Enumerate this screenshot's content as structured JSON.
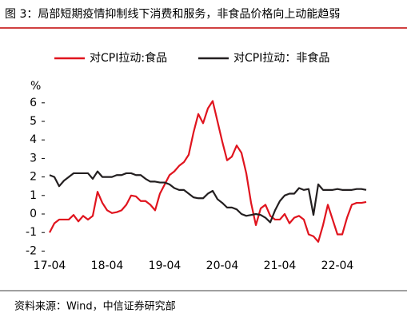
{
  "chart_data": {
    "type": "line",
    "title": "图 3：局部短期疫情抑制线下消费和服务，非食品价格向上动能趋弱",
    "y_unit": "%",
    "source": "资料来源：Wind，中信证券研究部",
    "categories": [
      "17-04",
      null,
      null,
      null,
      null,
      null,
      null,
      null,
      null,
      null,
      null,
      null,
      "18-04",
      null,
      null,
      null,
      null,
      null,
      null,
      null,
      null,
      null,
      null,
      null,
      "19-04",
      null,
      null,
      null,
      null,
      null,
      null,
      null,
      null,
      null,
      null,
      null,
      "20-04",
      null,
      null,
      null,
      null,
      null,
      null,
      null,
      null,
      null,
      null,
      null,
      "21-04",
      null,
      null,
      null,
      null,
      null,
      null,
      null,
      null,
      null,
      null,
      null,
      "22-04",
      null,
      null,
      null,
      null,
      null,
      null
    ],
    "series": [
      {
        "name": "对CPI拉动:食品",
        "color": "#e0141e",
        "values": [
          -1.0,
          -0.5,
          -0.3,
          -0.3,
          -0.3,
          -0.05,
          -0.4,
          -0.1,
          -0.3,
          -0.1,
          1.2,
          0.6,
          0.2,
          0.05,
          0.1,
          0.2,
          0.5,
          1.0,
          0.95,
          0.7,
          0.7,
          0.5,
          0.2,
          1.1,
          1.6,
          2.1,
          2.3,
          2.6,
          2.8,
          3.2,
          4.4,
          5.4,
          4.9,
          5.7,
          6.1,
          5.0,
          3.9,
          2.9,
          3.1,
          3.7,
          3.3,
          2.2,
          0.6,
          -0.6,
          0.3,
          0.5,
          -0.1,
          -0.3,
          -0.3,
          0.0,
          -0.5,
          -0.2,
          -0.1,
          -0.3,
          -1.1,
          -1.2,
          -1.5,
          -0.6,
          0.5,
          -0.3,
          -1.1,
          -1.1,
          -0.2,
          0.5,
          0.6,
          0.6,
          0.65
        ]
      },
      {
        "name": "对CPI拉动：非食品",
        "color": "#231f20",
        "values": [
          2.1,
          2.0,
          1.5,
          1.8,
          2.0,
          2.2,
          2.2,
          2.2,
          2.2,
          1.9,
          2.3,
          2.0,
          2.0,
          2.0,
          2.1,
          2.1,
          2.2,
          2.2,
          2.1,
          2.1,
          1.9,
          1.75,
          1.75,
          1.7,
          1.7,
          1.6,
          1.4,
          1.3,
          1.3,
          1.1,
          0.9,
          0.85,
          0.85,
          1.1,
          1.25,
          0.8,
          0.6,
          0.35,
          0.35,
          0.25,
          0.0,
          -0.1,
          -0.05,
          0.0,
          -0.05,
          -0.2,
          -0.45,
          0.2,
          0.7,
          1.0,
          1.1,
          1.1,
          1.4,
          1.3,
          1.35,
          -0.05,
          1.6,
          1.3,
          1.3,
          1.3,
          1.35,
          1.3,
          1.3,
          1.3,
          1.35,
          1.35,
          1.3
        ]
      }
    ],
    "ylim": [
      -2,
      7
    ],
    "yticks": [
      -2,
      -1,
      0,
      1,
      2,
      3,
      4,
      5,
      6
    ]
  }
}
